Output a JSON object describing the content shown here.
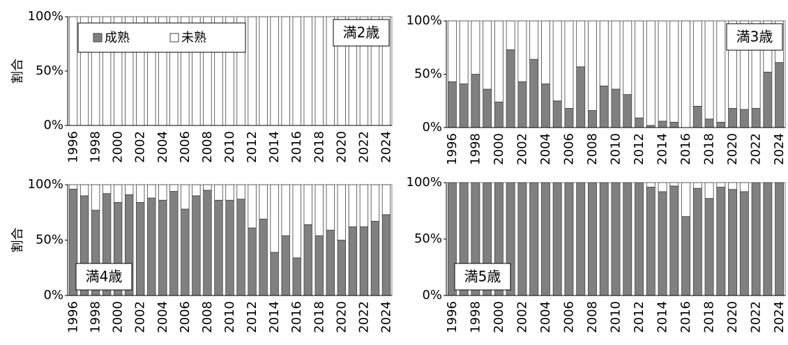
{
  "chart_data": [
    {
      "type": "bar",
      "stacked": true,
      "title": "満2歳",
      "title_position": "upper right",
      "ylabel": "割合",
      "legend": "upper left",
      "categories": [
        "1996",
        null,
        "1998",
        null,
        "2000",
        null,
        "2002",
        null,
        "2004",
        null,
        "2006",
        null,
        "2008",
        null,
        "2010",
        null,
        "2012",
        null,
        "2014",
        null,
        "2016",
        null,
        "2018",
        null,
        "2020",
        null,
        "2022",
        null,
        "2024"
      ],
      "series": [
        {
          "name": "成熟",
          "color": "#808080",
          "values": [
            0,
            0,
            0,
            0,
            0,
            0,
            0,
            0,
            0,
            0,
            0,
            0,
            0,
            0,
            0,
            0,
            0,
            0,
            0,
            0,
            0,
            0,
            0,
            0,
            0,
            0,
            0,
            0,
            0
          ]
        },
        {
          "name": "未熟",
          "color": "#ffffff",
          "values": [
            100,
            100,
            100,
            100,
            100,
            100,
            100,
            100,
            100,
            100,
            100,
            100,
            100,
            100,
            100,
            100,
            100,
            100,
            100,
            100,
            100,
            100,
            100,
            100,
            100,
            100,
            100,
            100,
            100
          ]
        }
      ],
      "ylim": [
        0,
        100
      ],
      "yticks": [
        {
          "value": 0,
          "label": "0%"
        },
        {
          "value": 50,
          "label": "50%"
        },
        {
          "value": 100,
          "label": "100%"
        }
      ]
    },
    {
      "type": "bar",
      "stacked": true,
      "title": "満3歳",
      "title_position": "upper right",
      "categories": [
        "1996",
        null,
        "1998",
        null,
        "2000",
        null,
        "2002",
        null,
        "2004",
        null,
        "2006",
        null,
        "2008",
        null,
        "2010",
        null,
        "2012",
        null,
        "2014",
        null,
        "2016",
        null,
        "2018",
        null,
        "2020",
        null,
        "2022",
        null,
        "2024"
      ],
      "series": [
        {
          "name": "成熟",
          "color": "#808080",
          "values": [
            43,
            41,
            50,
            36,
            24,
            73,
            43,
            64,
            41,
            25,
            18,
            57,
            16,
            39,
            36,
            31,
            9,
            2,
            6,
            5,
            0,
            20,
            8,
            5,
            18,
            17,
            18,
            52,
            61
          ]
        },
        {
          "name": "未熟",
          "color": "#ffffff",
          "values": [
            57,
            59,
            50,
            64,
            76,
            27,
            57,
            36,
            59,
            75,
            82,
            43,
            84,
            61,
            64,
            69,
            91,
            98,
            94,
            95,
            100,
            80,
            92,
            95,
            82,
            83,
            82,
            48,
            39
          ]
        }
      ],
      "ylim": [
        0,
        100
      ],
      "yticks": [
        {
          "value": 0,
          "label": "0%"
        },
        {
          "value": 50,
          "label": "50%"
        },
        {
          "value": 100,
          "label": "100%"
        }
      ]
    },
    {
      "type": "bar",
      "stacked": true,
      "title": "満4歳",
      "title_position": "lower left",
      "ylabel": "割合",
      "categories": [
        "1996",
        null,
        "1998",
        null,
        "2000",
        null,
        "2002",
        null,
        "2004",
        null,
        "2006",
        null,
        "2008",
        null,
        "2010",
        null,
        "2012",
        null,
        "2014",
        null,
        "2016",
        null,
        "2018",
        null,
        "2020",
        null,
        "2022",
        null,
        "2024"
      ],
      "series": [
        {
          "name": "成熟",
          "color": "#808080",
          "values": [
            96,
            90,
            77,
            92,
            84,
            91,
            84,
            88,
            86,
            94,
            78,
            90,
            95,
            86,
            86,
            87,
            61,
            69,
            39,
            54,
            34,
            64,
            54,
            59,
            50,
            62,
            62,
            67,
            73
          ]
        },
        {
          "name": "未熟",
          "color": "#ffffff",
          "values": [
            4,
            10,
            23,
            8,
            16,
            9,
            16,
            12,
            14,
            6,
            22,
            10,
            5,
            14,
            14,
            13,
            39,
            31,
            61,
            46,
            66,
            36,
            46,
            41,
            50,
            38,
            38,
            33,
            27
          ]
        }
      ],
      "ylim": [
        0,
        100
      ],
      "yticks": [
        {
          "value": 0,
          "label": "0%"
        },
        {
          "value": 50,
          "label": "50%"
        },
        {
          "value": 100,
          "label": "100%"
        }
      ]
    },
    {
      "type": "bar",
      "stacked": true,
      "title": "満5歳",
      "title_position": "lower left",
      "categories": [
        "1996",
        null,
        "1998",
        null,
        "2000",
        null,
        "2002",
        null,
        "2004",
        null,
        "2006",
        null,
        "2008",
        null,
        "2010",
        null,
        "2012",
        null,
        "2014",
        null,
        "2016",
        null,
        "2018",
        null,
        "2020",
        null,
        "2022",
        null,
        "2024"
      ],
      "series": [
        {
          "name": "成熟",
          "color": "#808080",
          "values": [
            100,
            100,
            100,
            100,
            100,
            100,
            100,
            100,
            100,
            100,
            100,
            100,
            100,
            100,
            100,
            100,
            100,
            96,
            92,
            97,
            70,
            95,
            86,
            96,
            94,
            92,
            100,
            100,
            100
          ]
        },
        {
          "name": "未熟",
          "color": "#ffffff",
          "values": [
            0,
            0,
            0,
            0,
            0,
            0,
            0,
            0,
            0,
            0,
            0,
            0,
            0,
            0,
            0,
            0,
            0,
            4,
            8,
            3,
            30,
            5,
            14,
            4,
            6,
            8,
            0,
            0,
            0
          ]
        }
      ],
      "ylim": [
        0,
        100
      ],
      "yticks": [
        {
          "value": 0,
          "label": "0%"
        },
        {
          "value": 50,
          "label": "50%"
        },
        {
          "value": 100,
          "label": "100%"
        }
      ]
    }
  ]
}
